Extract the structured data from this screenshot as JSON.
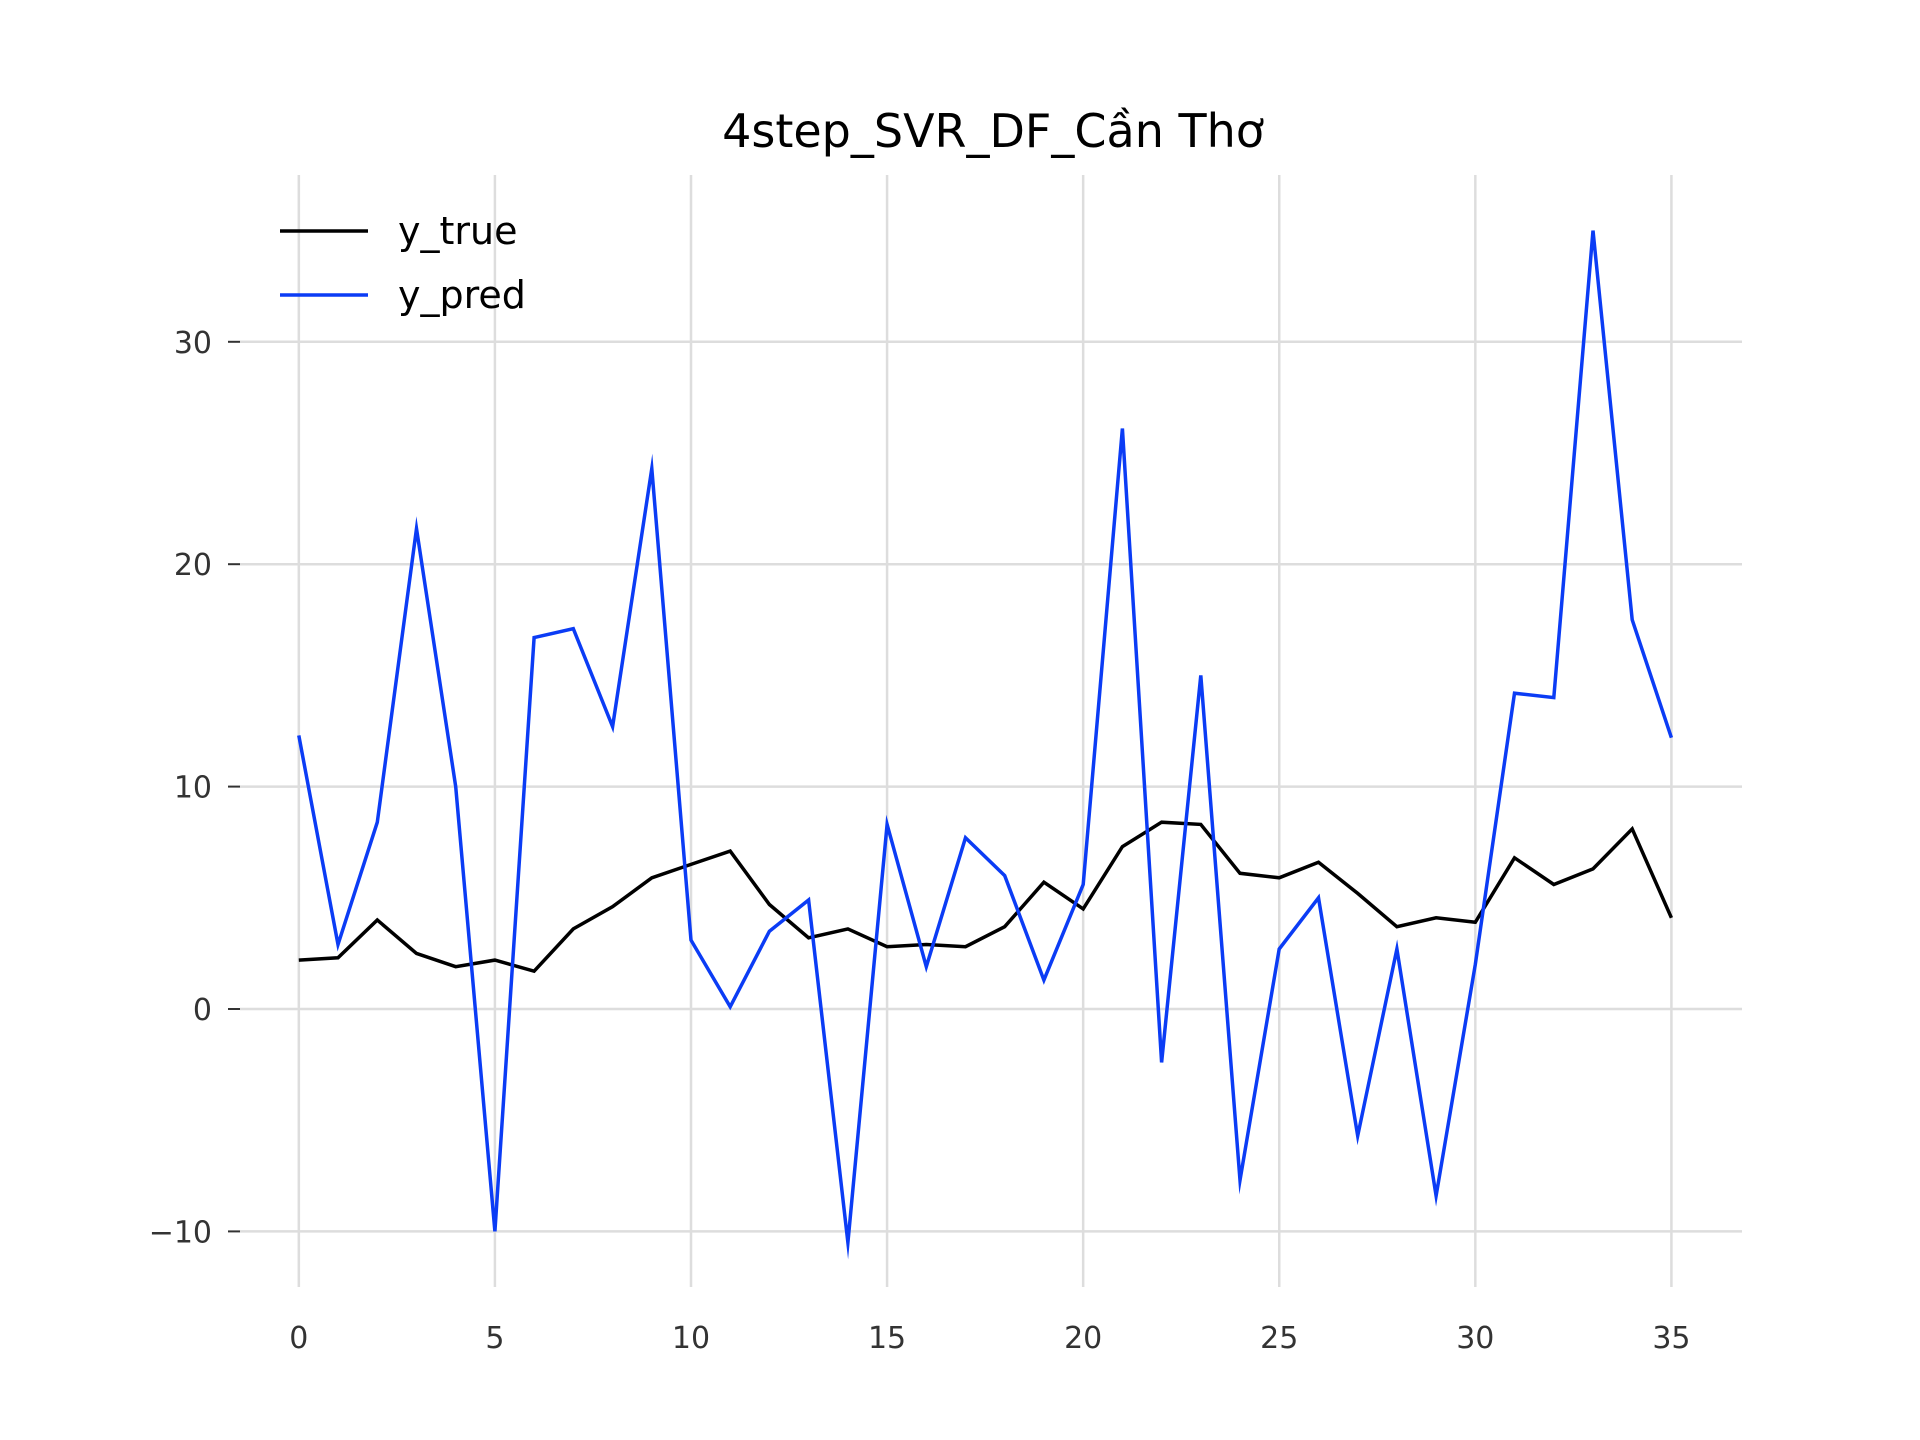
{
  "chart_data": {
    "type": "line",
    "title": "4step_SVR_DF_Cần Thơ",
    "xlabel": "",
    "ylabel": "",
    "xlim": [
      -1.5,
      36.8
    ],
    "ylim": [
      -12.5,
      37.5
    ],
    "xticks": [
      0,
      5,
      10,
      15,
      20,
      25,
      30,
      35
    ],
    "yticks": [
      -10,
      0,
      10,
      20,
      30
    ],
    "ytick_labels": [
      "−10",
      "0",
      "10",
      "20",
      "30"
    ],
    "grid": true,
    "legend_position": "top-left",
    "x": [
      0,
      1,
      2,
      3,
      4,
      5,
      6,
      7,
      8,
      9,
      10,
      11,
      12,
      13,
      14,
      15,
      16,
      17,
      18,
      19,
      20,
      21,
      22,
      23,
      24,
      25,
      26,
      27,
      28,
      29,
      30,
      31,
      32,
      33,
      34,
      35
    ],
    "series": [
      {
        "name": "y_true",
        "color": "#000000",
        "values": [
          2.2,
          2.3,
          4.0,
          2.5,
          1.9,
          2.2,
          1.7,
          3.6,
          4.6,
          5.9,
          6.5,
          7.1,
          4.7,
          3.2,
          3.6,
          2.8,
          2.9,
          2.8,
          3.7,
          5.7,
          4.5,
          7.3,
          8.4,
          8.3,
          6.1,
          5.9,
          6.6,
          5.2,
          3.7,
          4.1,
          3.9,
          6.8,
          5.6,
          6.3,
          8.1,
          4.1
        ]
      },
      {
        "name": "y_pred",
        "color": "#0b3cf5",
        "values": [
          12.3,
          2.9,
          8.4,
          21.6,
          10.0,
          -10.0,
          16.7,
          17.1,
          12.7,
          24.3,
          3.1,
          0.1,
          3.5,
          4.9,
          -10.5,
          8.3,
          1.9,
          7.7,
          6.0,
          1.3,
          5.6,
          26.1,
          -2.4,
          15.0,
          -7.7,
          2.7,
          5.0,
          -5.7,
          2.7,
          -8.4,
          2.0,
          14.2,
          14.0,
          35.0,
          17.5,
          12.2
        ]
      }
    ]
  }
}
